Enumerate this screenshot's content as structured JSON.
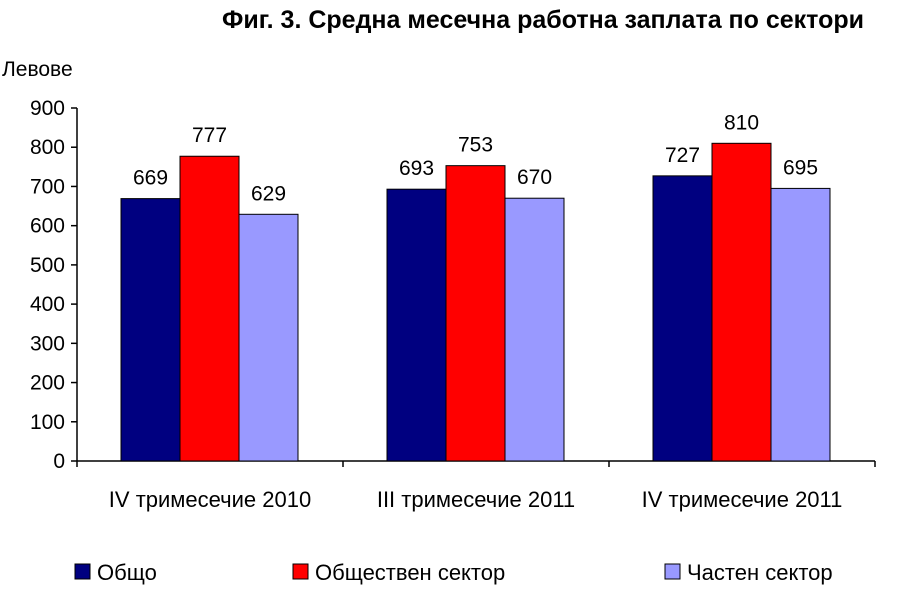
{
  "chart_data": {
    "type": "bar",
    "title": "Фиг. 3. Средна месечна работна заплата по сектори",
    "ylabel": "Левове",
    "xlabel": "",
    "ylim": [
      0,
      900
    ],
    "yticks": [
      0,
      100,
      200,
      300,
      400,
      500,
      600,
      700,
      800,
      900
    ],
    "grid": false,
    "legend_position": "bottom",
    "categories": [
      "IV тримесечие 2010",
      "III тримесечие 2011",
      "IV тримесечие 2011"
    ],
    "series": [
      {
        "name": "Общо",
        "color": "#000080",
        "values": [
          669,
          693,
          727
        ]
      },
      {
        "name": "Обществен сектор",
        "color": "#ff0000",
        "values": [
          777,
          753,
          810
        ]
      },
      {
        "name": "Частен сектор",
        "color": "#9999ff",
        "values": [
          629,
          670,
          695
        ]
      }
    ]
  }
}
